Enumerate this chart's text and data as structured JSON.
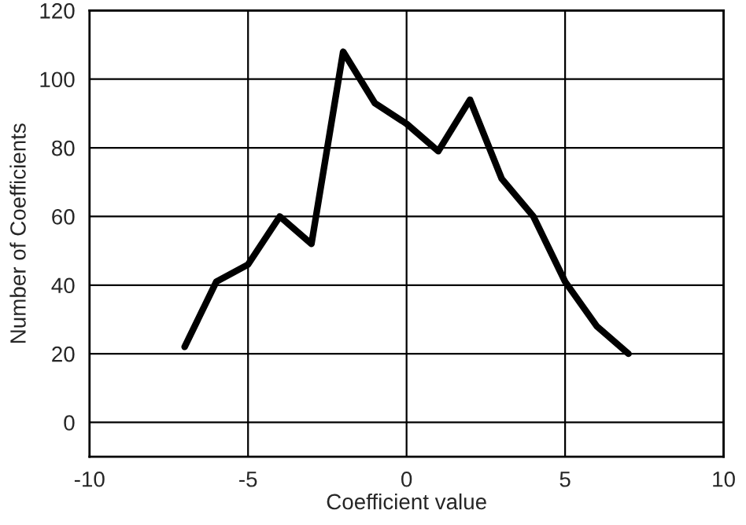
{
  "chart_data": {
    "type": "line",
    "xlabel": "Coefficient value",
    "ylabel": "Number of Coefficients",
    "x": [
      -7,
      -6,
      -5,
      -4,
      -3,
      -2,
      -1,
      0,
      1,
      2,
      3,
      4,
      5,
      6,
      7
    ],
    "series": [
      {
        "color": "#000000",
        "values": [
          22,
          41,
          46,
          60,
          52,
          108,
          93,
          87,
          79,
          94,
          71,
          60,
          41,
          28,
          20
        ]
      }
    ],
    "xlim": [
      -10,
      10
    ],
    "xticks": [
      -10,
      -5,
      0,
      5,
      10
    ],
    "ylim": [
      -10,
      120
    ],
    "yticks": [
      0,
      20,
      40,
      60,
      80,
      100,
      120
    ],
    "grid": true,
    "legend": false,
    "marker": "none",
    "line_style": "solid"
  }
}
